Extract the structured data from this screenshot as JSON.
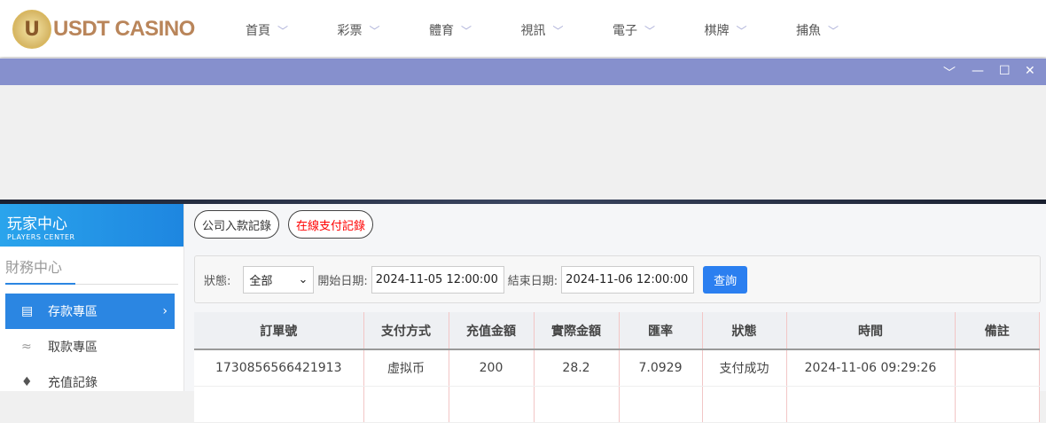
{
  "brand": {
    "logo_text": "USDT CASINO",
    "badge": "U"
  },
  "nav": [
    "首頁",
    "彩票",
    "體育",
    "視訊",
    "電子",
    "棋牌",
    "捕魚"
  ],
  "window_controls": [
    "chevron-down",
    "minimize",
    "maximize",
    "close"
  ],
  "sidebar": {
    "title": "玩家中心",
    "subtitle": "PLAYERS CENTER",
    "section": "財務中心",
    "items": [
      {
        "label": "存款專區",
        "icon": "card-icon",
        "active": true
      },
      {
        "label": "取款專區",
        "icon": "hand-cash-icon"
      },
      {
        "label": "充值記錄",
        "icon": "money-bag-icon"
      }
    ]
  },
  "tabs": [
    {
      "label": "公司入款記錄",
      "color": "#333333"
    },
    {
      "label": "在線支付記錄",
      "color": "#ff0000"
    }
  ],
  "filter": {
    "status_label": "狀態:",
    "status_value": "全部",
    "start_label": "開始日期:",
    "start_value": "2024-11-05 12:00:00",
    "end_label": "結束日期:",
    "end_value": "2024-11-06 12:00:00",
    "query_label": "查詢"
  },
  "table": {
    "headers": [
      "訂單號",
      "支付方式",
      "充值金額",
      "實際金額",
      "匯率",
      "狀態",
      "時間",
      "備註"
    ],
    "rows": [
      [
        "1730856566421913",
        "虛拟币",
        "200",
        "28.2",
        "7.0929",
        "支付成功",
        "2024-11-06 09:29:26",
        ""
      ]
    ]
  }
}
